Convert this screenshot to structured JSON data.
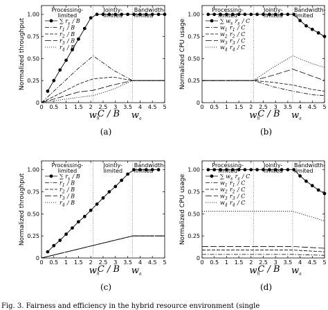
{
  "chart_data": [
    {
      "id": "a",
      "type": "line",
      "caption": "(a)",
      "ylabel": "Normalized throughput",
      "xlabel": "C / B",
      "xlim": [
        0,
        5
      ],
      "ylim": [
        0,
        1.1
      ],
      "xticks": [
        "0",
        "0.5",
        "1",
        "1.5",
        "2",
        "2.5",
        "3",
        "3.5",
        "4",
        "4.5",
        "5"
      ],
      "yticks": [
        "0",
        "0.25",
        "0.50",
        "0.75",
        "1.00"
      ],
      "boundaries": [
        2.1,
        3.7
      ],
      "boundary_labels": [
        "w_h",
        "w_a"
      ],
      "regions": [
        "Processing-\nlimited",
        "Jointly-\nlimited",
        "Bandwidth-\nlimited"
      ],
      "legend": [
        "∑ r_s / B",
        "r_1 / B",
        "r_2 / B",
        "r_3 / B",
        "r_4 / B"
      ],
      "series": [
        {
          "name": "∑ r_s / B",
          "style": "solid-dot",
          "x": [
            0.25,
            0.5,
            0.75,
            1,
            1.25,
            1.5,
            1.75,
            2,
            2.25,
            2.5,
            2.75,
            3,
            3.25,
            3.5,
            3.75,
            4,
            4.25,
            4.5,
            4.75,
            5
          ],
          "y": [
            0.13,
            0.25,
            0.37,
            0.48,
            0.6,
            0.72,
            0.84,
            0.96,
            1,
            1,
            1,
            1,
            1,
            1,
            1,
            1,
            1,
            1,
            1,
            1
          ]
        },
        {
          "name": "r_1 / B",
          "style": "dashdot",
          "x": [
            0,
            0.5,
            1,
            1.5,
            2.1,
            2.9,
            3.7,
            4.5,
            5
          ],
          "y": [
            0,
            0.13,
            0.26,
            0.39,
            0.53,
            0.37,
            0.25,
            0.25,
            0.25
          ]
        },
        {
          "name": "r_2 / B",
          "style": "dash",
          "x": [
            0,
            0.5,
            1,
            1.5,
            2.1,
            2.9,
            3.7,
            4.5,
            5
          ],
          "y": [
            0,
            0.07,
            0.14,
            0.21,
            0.27,
            0.29,
            0.25,
            0.25,
            0.25
          ]
        },
        {
          "name": "r_3 / B",
          "style": "longdash",
          "x": [
            0,
            0.5,
            1,
            1.5,
            2.1,
            2.9,
            3.7,
            4.5,
            5
          ],
          "y": [
            0,
            0.04,
            0.08,
            0.12,
            0.14,
            0.2,
            0.25,
            0.25,
            0.25
          ]
        },
        {
          "name": "r_4 / B",
          "style": "dot",
          "x": [
            0,
            0.5,
            1,
            1.5,
            2.1,
            2.9,
            3.7,
            4.5,
            5
          ],
          "y": [
            0,
            0.02,
            0.04,
            0.06,
            0.08,
            0.15,
            0.25,
            0.25,
            0.25
          ]
        }
      ]
    },
    {
      "id": "b",
      "type": "line",
      "caption": "(b)",
      "ylabel": "Normalized CPU usage",
      "xlabel": "C / B",
      "xlim": [
        0,
        5
      ],
      "ylim": [
        0,
        1.1
      ],
      "xticks": [
        "0",
        "0.5",
        "1",
        "1.5",
        "2",
        "2.5",
        "3",
        "3.5",
        "4",
        "4.5",
        "5"
      ],
      "yticks": [
        "0",
        "0.25",
        "0.50",
        "0.75",
        "1.00"
      ],
      "boundaries": [
        2.1,
        3.7
      ],
      "boundary_labels": [
        "w_h",
        "w_a"
      ],
      "regions": [
        "Processing-\nlimited",
        "Jointly-\nlimited",
        "Bandwidth-\nlimited"
      ],
      "legend": [
        "∑ w_s r_s / C",
        "w_1 r_1 / C",
        "w_2 r_2 / C",
        "w_3 r_3 / C",
        "w_4 r_4 / C"
      ],
      "series": [
        {
          "name": "∑ w_s r_s / C",
          "style": "solid-dot",
          "x": [
            0.25,
            0.5,
            0.75,
            1,
            1.25,
            1.5,
            1.75,
            2,
            2.25,
            2.5,
            2.75,
            3,
            3.25,
            3.5,
            3.75,
            4,
            4.25,
            4.5,
            4.75,
            5
          ],
          "y": [
            1,
            1,
            1,
            1,
            1,
            1,
            1,
            1,
            1,
            1,
            1,
            1,
            1,
            1,
            1,
            0.93,
            0.87,
            0.83,
            0.79,
            0.75
          ]
        },
        {
          "name": "w_1 r_1 / C",
          "style": "dashdot",
          "x": [
            0,
            2.1,
            2.9,
            3.7,
            4.5,
            5
          ],
          "y": [
            0.25,
            0.25,
            0.18,
            0.13,
            0.09,
            0.08
          ]
        },
        {
          "name": "w_2 r_2 / C",
          "style": "dash",
          "x": [
            0,
            2.1,
            2.9,
            3.7,
            4.5,
            5
          ],
          "y": [
            0.25,
            0.25,
            0.23,
            0.2,
            0.15,
            0.13
          ]
        },
        {
          "name": "w_3 r_3 / C",
          "style": "longdash",
          "x": [
            0,
            2.1,
            2.9,
            3.7,
            4.5,
            5
          ],
          "y": [
            0.25,
            0.25,
            0.31,
            0.38,
            0.3,
            0.25
          ]
        },
        {
          "name": "w_4 r_4 / C",
          "style": "dot",
          "x": [
            0,
            2.1,
            2.9,
            3.7,
            4.5,
            5
          ],
          "y": [
            0.25,
            0.25,
            0.4,
            0.53,
            0.44,
            0.4
          ]
        }
      ]
    },
    {
      "id": "c",
      "type": "line",
      "caption": "(c)",
      "ylabel": "Normalized throughput",
      "xlabel": "C / B",
      "xlim": [
        0,
        5
      ],
      "ylim": [
        0,
        1.1
      ],
      "xticks": [
        "0",
        "0.5",
        "1",
        "1.5",
        "2",
        "2.5",
        "3",
        "3.5",
        "4",
        "4.5",
        "5"
      ],
      "yticks": [
        "0",
        "0.25",
        "0.50",
        "0.75",
        "1.00"
      ],
      "boundaries": [
        2.1,
        3.7
      ],
      "boundary_labels": [
        "w_h",
        "w_a"
      ],
      "regions": [
        "Processing-\nlimited",
        "Jointly-\nlimited",
        "Bandwidth-\nlimited"
      ],
      "legend": [
        "∑ r_s / B",
        "r_1 / B",
        "r_2 / B",
        "r_3 / B",
        "r_4 / B"
      ],
      "series": [
        {
          "name": "∑ r_s / B",
          "style": "solid-dot",
          "x": [
            0.25,
            0.5,
            0.75,
            1,
            1.25,
            1.5,
            1.75,
            2,
            2.25,
            2.5,
            2.75,
            3,
            3.25,
            3.5,
            3.75,
            4,
            4.25,
            4.5,
            4.75
          ],
          "y": [
            0.07,
            0.14,
            0.2,
            0.27,
            0.34,
            0.41,
            0.47,
            0.54,
            0.61,
            0.68,
            0.75,
            0.81,
            0.88,
            0.95,
            1,
            1,
            1,
            1,
            1
          ]
        },
        {
          "name": "r_1 / B",
          "style": "dashdot",
          "x": [
            0,
            3.7,
            5
          ],
          "y": [
            0,
            0.25,
            0.25
          ]
        },
        {
          "name": "r_2 / B",
          "style": "dash",
          "x": [
            0,
            3.7,
            5
          ],
          "y": [
            0,
            0.25,
            0.25
          ]
        },
        {
          "name": "r_3 / B",
          "style": "longdash",
          "x": [
            0,
            3.7,
            5
          ],
          "y": [
            0,
            0.25,
            0.25
          ]
        },
        {
          "name": "r_4 / B",
          "style": "dot",
          "x": [
            0,
            3.7,
            5
          ],
          "y": [
            0,
            0.25,
            0.25
          ]
        }
      ]
    },
    {
      "id": "d",
      "type": "line",
      "caption": "(d)",
      "ylabel": "Normalized CPU usage",
      "xlabel": "C / B",
      "xlim": [
        0,
        5
      ],
      "ylim": [
        0,
        1.1
      ],
      "xticks": [
        "0",
        "0.5",
        "1",
        "1.5",
        "2",
        "2.5",
        "3",
        "3.5",
        "4",
        "4.5",
        "5"
      ],
      "yticks": [
        "0",
        "0.25",
        "0.50",
        "0.75",
        "1.00"
      ],
      "boundaries": [
        2.1,
        3.7
      ],
      "boundary_labels": [
        "w_h",
        "w_a"
      ],
      "regions": [
        "Processing-\nlimited",
        "Jointly-\nlimited",
        "Bandwidth-\nlimited"
      ],
      "legend": [
        "∑ w_s r_s / C",
        "w_1 r_1 / C",
        "w_2 r_2 / C",
        "w_3 r_3 / C",
        "w_4 r_4 / C"
      ],
      "series": [
        {
          "name": "∑ w_s r_s / C",
          "style": "solid-dot",
          "x": [
            0.25,
            0.5,
            0.75,
            1,
            1.25,
            1.5,
            1.75,
            2,
            2.25,
            2.5,
            2.75,
            3,
            3.25,
            3.5,
            3.75,
            4,
            4.25,
            4.5,
            4.75,
            5
          ],
          "y": [
            1,
            1,
            1,
            1,
            1,
            1,
            1,
            1,
            1,
            1,
            1,
            1,
            1,
            1,
            1,
            0.93,
            0.87,
            0.82,
            0.77,
            0.73
          ]
        },
        {
          "name": "w_1 r_1 / C",
          "style": "dashdot",
          "x": [
            0,
            3.7,
            5
          ],
          "y": [
            0.04,
            0.04,
            0.03
          ]
        },
        {
          "name": "w_2 r_2 / C",
          "style": "dash",
          "x": [
            0,
            3.7,
            5
          ],
          "y": [
            0.09,
            0.09,
            0.07
          ]
        },
        {
          "name": "w_3 r_3 / C",
          "style": "longdash",
          "x": [
            0,
            3.7,
            5
          ],
          "y": [
            0.13,
            0.13,
            0.11
          ]
        },
        {
          "name": "w_4 r_4 / C",
          "style": "dot",
          "x": [
            0,
            3.7,
            5
          ],
          "y": [
            0.53,
            0.53,
            0.42
          ]
        }
      ]
    }
  ],
  "footer_text": "Fig. 3.   Fairness and efficiency in the hybrid resource environment (single"
}
